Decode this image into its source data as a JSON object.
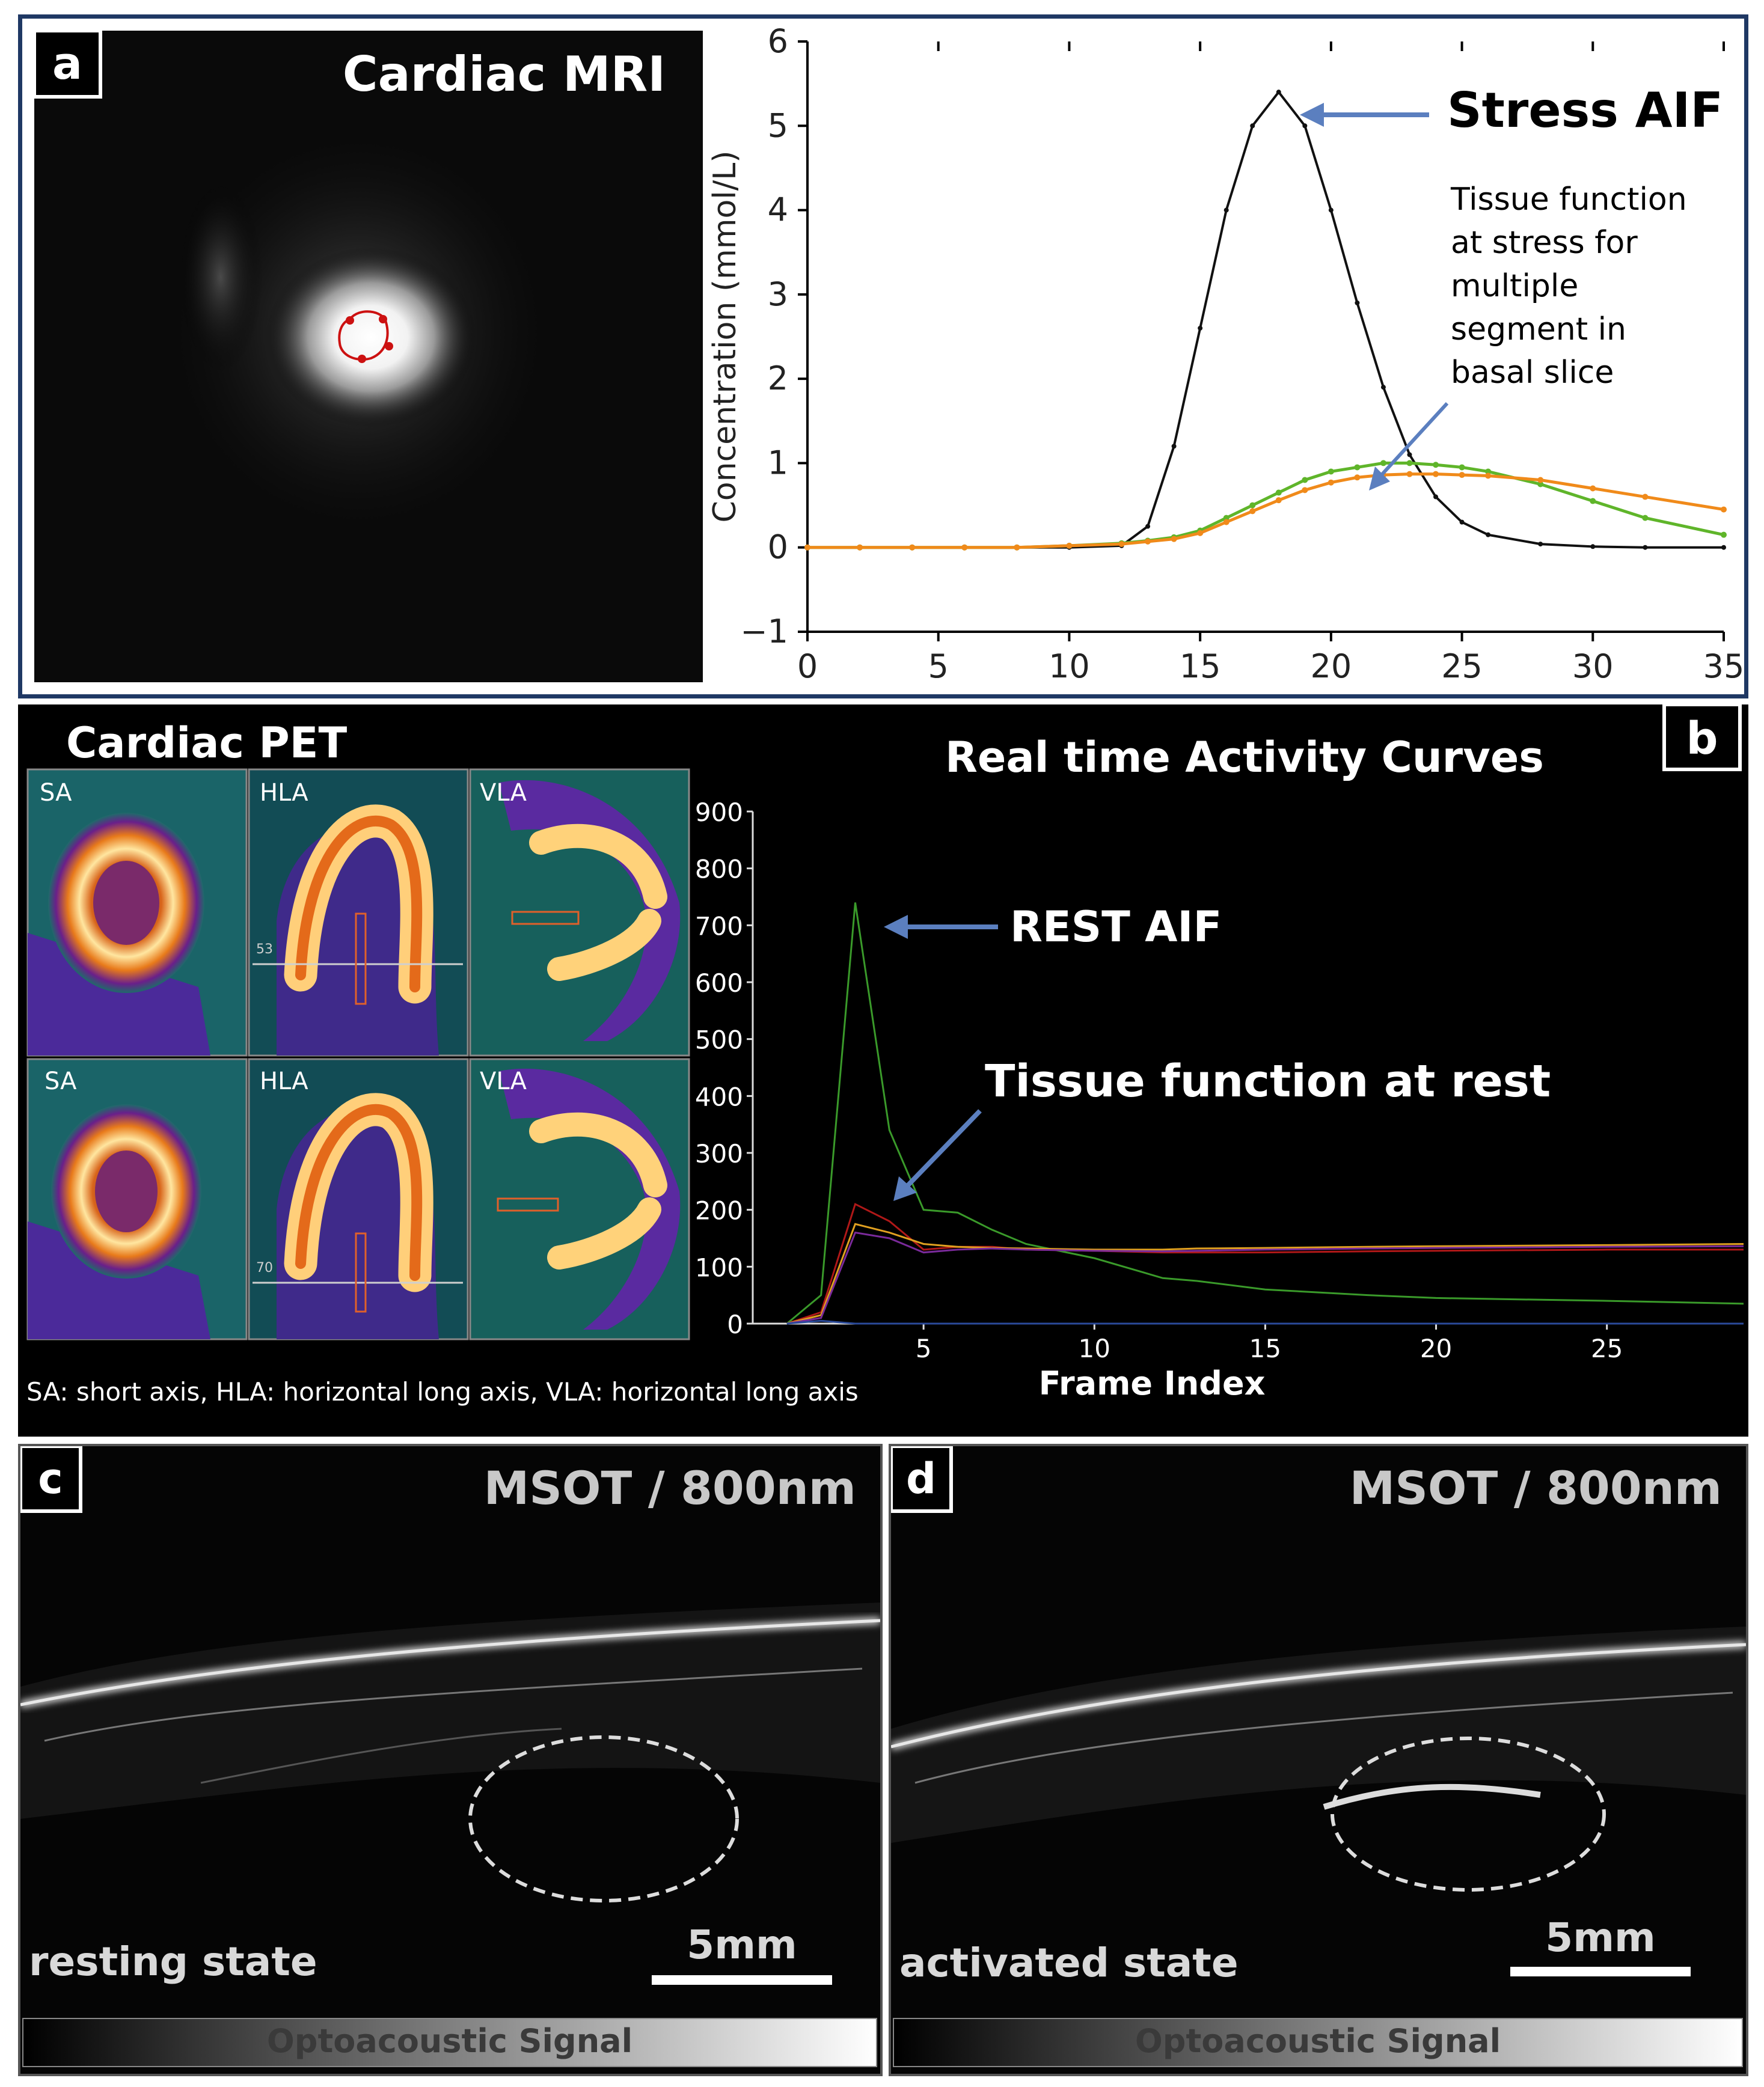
{
  "panel_a": {
    "label": "a",
    "image_title": "Cardiac MRI",
    "annotation_aif": "Stress AIF",
    "annotation_tissue": [
      "Tissue function",
      "at stress for",
      "multiple",
      "segment in",
      "basal slice"
    ]
  },
  "panel_b": {
    "label": "b",
    "image_title": "Cardiac PET",
    "chart_title": "Real time Activity Curves",
    "annotation_aif": "REST AIF",
    "annotation_tissue": "Tissue function at rest",
    "view_labels_top": [
      "SA",
      "HLA",
      "VLA"
    ],
    "view_labels_bottom": [
      "SA",
      "HLA",
      "VLA"
    ],
    "slice_numbers": [
      "53",
      "70"
    ],
    "caption": "SA: short axis, HLA: horizontal long axis, VLA: horizontal long axis"
  },
  "panel_c": {
    "label": "c",
    "header": "MSOT / 800nm",
    "state": "resting state",
    "scale": "5mm",
    "colorbar": "Optoacoustic Signal"
  },
  "panel_d": {
    "label": "d",
    "header": "MSOT / 800nm",
    "state": "activated state",
    "scale": "5mm",
    "colorbar": "Optoacoustic Signal"
  },
  "colors": {
    "frame_border": "#1f3864",
    "annotation_arrow": "#5b7fbf",
    "aif_curve": "#000000",
    "tissue_green": "#6ab82a",
    "tissue_orange": "#f08a1a",
    "pet_aif": "#2f8f2f"
  },
  "chart_data": [
    {
      "type": "line",
      "panel": "a",
      "title": "",
      "xlabel": "",
      "ylabel": "Concentration (mmol/L)",
      "xlim": [
        0,
        35
      ],
      "ylim": [
        -1,
        6
      ],
      "xticks": [
        0,
        5,
        10,
        15,
        20,
        25,
        30,
        35
      ],
      "yticks": [
        -1,
        0,
        1,
        2,
        3,
        4,
        5,
        6
      ],
      "x": [
        0,
        2,
        4,
        6,
        8,
        10,
        12,
        13,
        14,
        15,
        16,
        17,
        18,
        19,
        20,
        21,
        22,
        23,
        24,
        25,
        26,
        28,
        30,
        32,
        35
      ],
      "series": [
        {
          "values": [
            0,
            0,
            0,
            0,
            0,
            0,
            0.02,
            0.25,
            1.2,
            2.6,
            4.0,
            5.0,
            5.4,
            5.0,
            4.0,
            2.9,
            1.9,
            1.1,
            0.6,
            0.3,
            0.15,
            0.04,
            0.01,
            0,
            0
          ]
        },
        {
          "values": [
            0,
            0,
            0,
            0,
            0,
            0.02,
            0.05,
            0.08,
            0.12,
            0.2,
            0.35,
            0.5,
            0.65,
            0.8,
            0.9,
            0.95,
            1.0,
            1.0,
            0.98,
            0.95,
            0.9,
            0.75,
            0.55,
            0.35,
            0.15
          ]
        },
        {
          "values": [
            0,
            0,
            0,
            0,
            0,
            0.02,
            0.04,
            0.07,
            0.1,
            0.17,
            0.3,
            0.43,
            0.56,
            0.68,
            0.77,
            0.83,
            0.86,
            0.87,
            0.87,
            0.86,
            0.85,
            0.8,
            0.7,
            0.6,
            0.45
          ]
        }
      ]
    },
    {
      "type": "line",
      "panel": "b",
      "title": "Real time Activity Curves",
      "xlabel": "Frame Index",
      "ylabel": "",
      "xlim": [
        0,
        29
      ],
      "ylim": [
        0,
        900
      ],
      "xticks": [
        5,
        10,
        15,
        20,
        25
      ],
      "yticks": [
        0,
        100,
        200,
        300,
        400,
        500,
        600,
        700,
        800,
        900
      ],
      "x": [
        1,
        2,
        3,
        4,
        5,
        6,
        7,
        8,
        10,
        12,
        13,
        15,
        18,
        20,
        25,
        29
      ],
      "series": [
        {
          "values": [
            0,
            50,
            740,
            340,
            200,
            195,
            165,
            140,
            115,
            80,
            75,
            60,
            50,
            45,
            40,
            35
          ]
        },
        {
          "values": [
            0,
            20,
            210,
            180,
            130,
            135,
            135,
            130,
            128,
            125,
            125,
            125,
            127,
            128,
            130,
            130
          ]
        },
        {
          "values": [
            0,
            15,
            175,
            160,
            140,
            135,
            133,
            132,
            130,
            130,
            132,
            133,
            135,
            136,
            138,
            140
          ]
        },
        {
          "values": [
            0,
            10,
            160,
            150,
            125,
            130,
            132,
            130,
            128,
            127,
            128,
            130,
            132,
            133,
            135,
            136
          ]
        },
        {
          "values": [
            0,
            5,
            0,
            0,
            0,
            0,
            0,
            0,
            0,
            0,
            0,
            0,
            0,
            0,
            0,
            0
          ]
        }
      ]
    }
  ]
}
